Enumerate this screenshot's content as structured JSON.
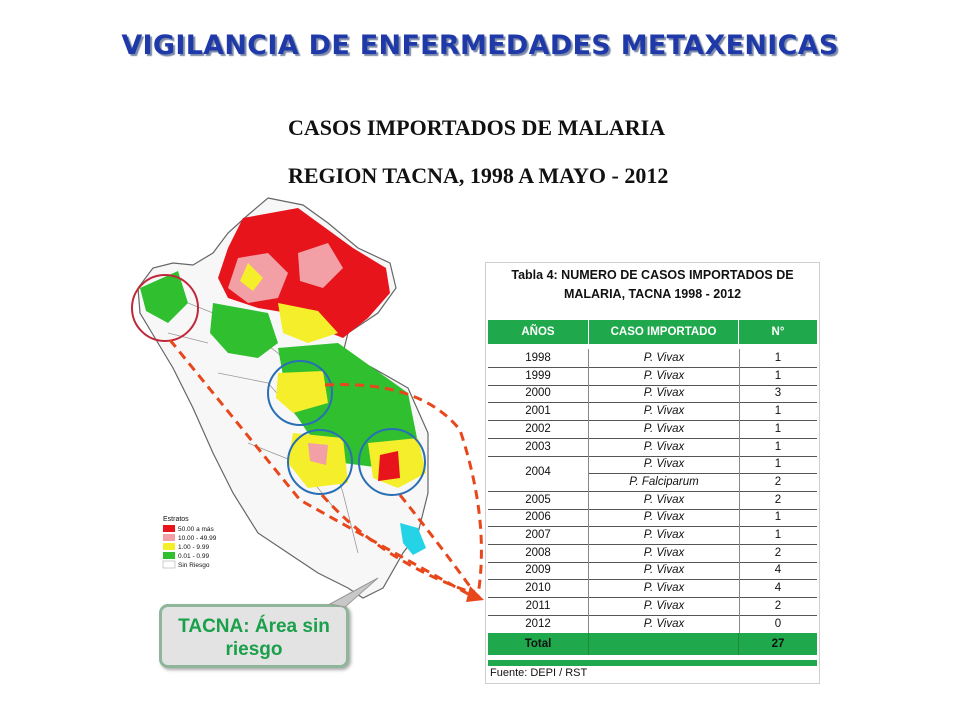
{
  "title": "VIGILANCIA DE ENFERMEDADES METAXENICAS",
  "subtitle_1": "CASOS IMPORTADOS DE MALARIA",
  "subtitle_2": "REGION TACNA, 1998 A MAYO - 2012",
  "table": {
    "title_line1": "Tabla 4: NUMERO DE CASOS IMPORTADOS DE",
    "title_line2": "MALARIA, TACNA 1998 - 2012",
    "headers": [
      "AÑOS",
      "CASO IMPORTADO",
      "N°"
    ],
    "rows": [
      {
        "year": "1998",
        "case": "P. Vivax",
        "n": "1"
      },
      {
        "year": "1999",
        "case": "P. Vivax",
        "n": "1"
      },
      {
        "year": "2000",
        "case": "P. Vivax",
        "n": "3"
      },
      {
        "year": "2001",
        "case": "P. Vivax",
        "n": "1"
      },
      {
        "year": "2002",
        "case": "P. Vivax",
        "n": "1"
      },
      {
        "year": "2003",
        "case": "P. Vivax",
        "n": "1"
      },
      {
        "year": "2004",
        "case": "P. Vivax",
        "n": "1"
      },
      {
        "year": "",
        "case": "P. Falciparum",
        "n": "2"
      },
      {
        "year": "2005",
        "case": "P. Vivax",
        "n": "2"
      },
      {
        "year": "2006",
        "case": "P. Vivax",
        "n": "1"
      },
      {
        "year": "2007",
        "case": "P. Vivax",
        "n": "1"
      },
      {
        "year": "2008",
        "case": "P. Vivax",
        "n": "2"
      },
      {
        "year": "2009",
        "case": "P. Vivax",
        "n": "4"
      },
      {
        "year": "2010",
        "case": "P. Vivax",
        "n": "4"
      },
      {
        "year": "2011",
        "case": "P. Vivax",
        "n": "2"
      },
      {
        "year": "2012",
        "case": "P. Vivax",
        "n": "0"
      }
    ],
    "total_label": "Total",
    "total_value": "27",
    "source": "Fuente:  DEPI / RST"
  },
  "legend": {
    "title": "Estratos",
    "items": [
      {
        "label": "50.00  a más",
        "color": "#e8141c"
      },
      {
        "label": "10.00 - 49.99",
        "color": "#f2a0a6"
      },
      {
        "label": "1.00 - 9.99",
        "color": "#f5ee2a"
      },
      {
        "label": "0.01 - 0.99",
        "color": "#2fbf2f"
      },
      {
        "label": "Sin Riesgo",
        "color": "#ffffff"
      }
    ]
  },
  "callout": {
    "line1": "TACNA: Área sin",
    "line2": "riesgo"
  },
  "colors": {
    "title": "#1f3aa8",
    "table_green": "#1fa84c",
    "arrow": "#e8471c",
    "circle_red": "#c0283a",
    "circle_blue": "#2a6fb5",
    "lake": "#24d3e6"
  }
}
